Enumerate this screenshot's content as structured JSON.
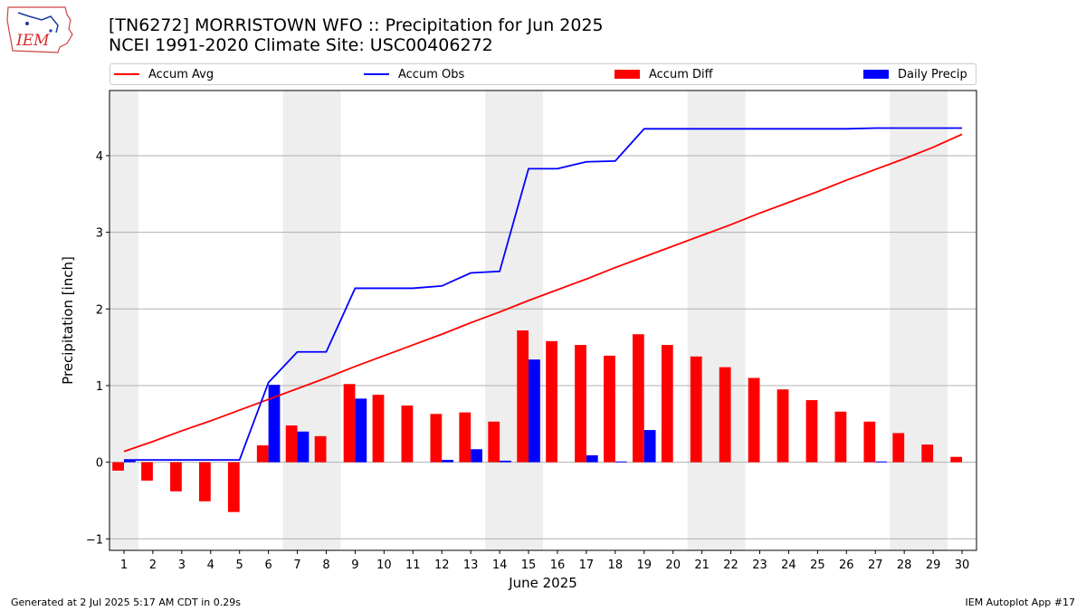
{
  "title_line1": "[TN6272] MORRISTOWN WFO :: Precipitation for Jun 2025",
  "title_line2": "NCEI 1991-2020 Climate Site: USC00406272",
  "logo": {
    "text": "IEM",
    "color": "#d42a2a"
  },
  "legend": {
    "placement": "top, full width",
    "items": [
      {
        "label": "Accum Avg",
        "kind": "line",
        "color": "#ff0000"
      },
      {
        "label": "Accum Obs",
        "kind": "line",
        "color": "#0000ff"
      },
      {
        "label": "Accum Diff",
        "kind": "bar",
        "color": "#ff0000"
      },
      {
        "label": "Daily Precip",
        "kind": "bar",
        "color": "#0000ff"
      }
    ]
  },
  "footer": {
    "left": "Generated at 2 Jul 2025 5:17 AM CDT in 0.29s",
    "right": "IEM Autoplot App #17"
  },
  "chart_data": {
    "type": "bar",
    "xlabel": "June 2025",
    "ylabel": "Precipitation [inch]",
    "xlim": [
      0.5,
      30.5
    ],
    "ylim": [
      -1.15,
      4.85
    ],
    "yticks": [
      -1,
      0,
      1,
      2,
      3,
      4
    ],
    "grid": "horizontal",
    "x": [
      1,
      2,
      3,
      4,
      5,
      6,
      7,
      8,
      9,
      10,
      11,
      12,
      13,
      14,
      15,
      16,
      17,
      18,
      19,
      20,
      21,
      22,
      23,
      24,
      25,
      26,
      27,
      28,
      29,
      30
    ],
    "weekend_shading": [
      [
        0.5,
        1.5
      ],
      [
        6.5,
        8.5
      ],
      [
        13.5,
        15.5
      ],
      [
        20.5,
        22.5
      ],
      [
        27.5,
        29.5
      ]
    ],
    "shading_color": "#eeeeee",
    "series": [
      {
        "name": "Accum Avg",
        "kind": "line",
        "color": "#ff0000",
        "values": [
          0.14,
          0.27,
          0.41,
          0.54,
          0.68,
          0.82,
          0.96,
          1.1,
          1.25,
          1.39,
          1.53,
          1.67,
          1.82,
          1.96,
          2.11,
          2.25,
          2.39,
          2.54,
          2.68,
          2.82,
          2.96,
          3.1,
          3.25,
          3.39,
          3.53,
          3.68,
          3.82,
          3.96,
          4.11,
          4.28
        ]
      },
      {
        "name": "Accum Obs",
        "kind": "line",
        "color": "#0000ff",
        "values": [
          0.03,
          0.03,
          0.03,
          0.03,
          0.03,
          1.04,
          1.44,
          1.44,
          2.27,
          2.27,
          2.27,
          2.3,
          2.47,
          2.49,
          3.83,
          3.83,
          3.92,
          3.93,
          4.35,
          4.35,
          4.35,
          4.35,
          4.35,
          4.35,
          4.35,
          4.35,
          4.36,
          4.36,
          4.36,
          4.36
        ]
      },
      {
        "name": "Accum Diff",
        "kind": "bar",
        "color": "#ff0000",
        "values": [
          -0.11,
          -0.24,
          -0.38,
          -0.51,
          -0.65,
          0.22,
          0.48,
          0.34,
          1.02,
          0.88,
          0.74,
          0.63,
          0.65,
          0.53,
          1.72,
          1.58,
          1.53,
          1.39,
          1.67,
          1.53,
          1.38,
          1.24,
          1.1,
          0.95,
          0.81,
          0.66,
          0.53,
          0.38,
          0.23,
          0.07
        ]
      },
      {
        "name": "Daily Precip",
        "kind": "bar",
        "color": "#0000ff",
        "values": [
          0.03,
          0.0,
          0.0,
          0.0,
          0.0,
          1.01,
          0.4,
          0.0,
          0.83,
          0.0,
          0.0,
          0.03,
          0.17,
          0.02,
          1.34,
          0.0,
          0.09,
          0.01,
          0.42,
          0.0,
          0.0,
          0.0,
          0.0,
          0.0,
          0.0,
          0.0,
          0.01,
          0.0,
          0.0,
          0.0
        ]
      }
    ]
  }
}
